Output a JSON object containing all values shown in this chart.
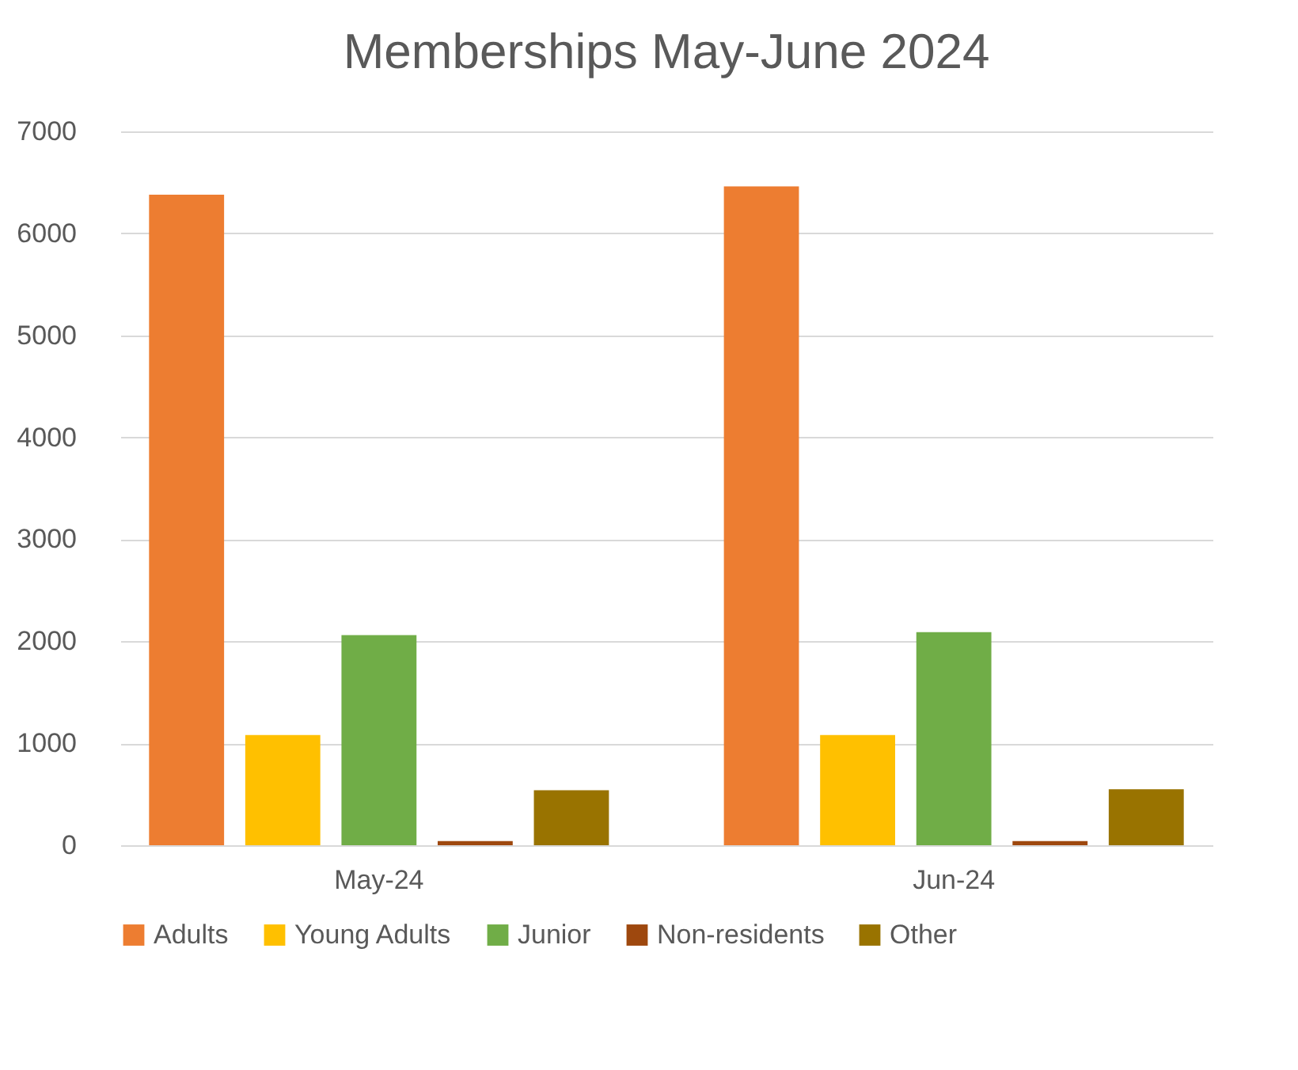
{
  "chart_data": {
    "type": "bar",
    "title": "Memberships May-June 2024",
    "categories": [
      "May-24",
      "Jun-24"
    ],
    "series": [
      {
        "name": "Adults",
        "color": "#ed7d31",
        "values": [
          6380,
          6460
        ]
      },
      {
        "name": "Young Adults",
        "color": "#ffc000",
        "values": [
          1080,
          1080
        ]
      },
      {
        "name": "Junior",
        "color": "#70ad47",
        "values": [
          2060,
          2090
        ]
      },
      {
        "name": "Non-residents",
        "color": "#9e480e",
        "values": [
          40,
          40
        ]
      },
      {
        "name": "Other",
        "color": "#997300",
        "values": [
          540,
          550
        ]
      }
    ],
    "ylim": [
      0,
      7000
    ],
    "yticks": [
      0,
      1000,
      2000,
      3000,
      4000,
      5000,
      6000,
      7000
    ],
    "grid": "y",
    "legend": "bottom"
  }
}
